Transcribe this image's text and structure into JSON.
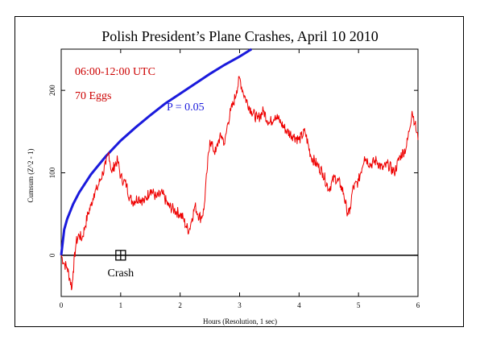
{
  "chart_data": {
    "type": "line",
    "title": "Polish President’s Plane Crashes, April 10 2010",
    "xlabel": "Hours (Resolution, 1 sec)",
    "ylabel": "Cumsum (Z^2 - 1)",
    "xlim": [
      0,
      6
    ],
    "ylim": [
      -50,
      250
    ],
    "xticks": [
      0,
      1,
      2,
      3,
      4,
      5,
      6
    ],
    "yticks": [
      0,
      100,
      200
    ],
    "annotations": {
      "time_range": "06:00-12:00 UTC",
      "eggs": "70 Eggs",
      "p_label": "P = 0.05",
      "event_label": "Crash",
      "event_x": 1.0,
      "event_y": 0
    },
    "colors": {
      "cumsum": "#ee0000",
      "p_envelope": "#1a1adc",
      "text_red": "#cc0000",
      "text_blue": "#1a1adc"
    },
    "p_envelope": {
      "name": "P = 0.05",
      "x": [
        0,
        0.05,
        0.1,
        0.2,
        0.3,
        0.5,
        0.75,
        1.0,
        1.25,
        1.5,
        1.75,
        2.0,
        2.25,
        2.5,
        2.75,
        3.0,
        3.2
      ],
      "y": [
        0,
        31,
        44,
        62,
        76,
        98,
        120,
        139,
        155,
        170,
        184,
        196,
        208,
        220,
        231,
        241,
        250
      ]
    },
    "series": [
      {
        "x": [
          0,
          0.05,
          0.1,
          0.15,
          0.18,
          0.2,
          0.25,
          0.3,
          0.35,
          0.4,
          0.45,
          0.5,
          0.55,
          0.6,
          0.65,
          0.7,
          0.75,
          0.8,
          0.85,
          0.9,
          0.95,
          1.0,
          1.05,
          1.1,
          1.15,
          1.2,
          1.3,
          1.4,
          1.5,
          1.6,
          1.7,
          1.8,
          1.9,
          2.0,
          2.05,
          2.1,
          2.15,
          2.2,
          2.25,
          2.3,
          2.35,
          2.4,
          2.45,
          2.5,
          2.55,
          2.6,
          2.65,
          2.7,
          2.75,
          2.8,
          2.85,
          2.9,
          2.95,
          3.0,
          3.05,
          3.1,
          3.2,
          3.3,
          3.4,
          3.5,
          3.6,
          3.7,
          3.8,
          3.9,
          4.0,
          4.1,
          4.2,
          4.3,
          4.4,
          4.5,
          4.6,
          4.7,
          4.75,
          4.8,
          4.85,
          4.9,
          5.0,
          5.1,
          5.2,
          5.3,
          5.4,
          5.5,
          5.6,
          5.7,
          5.8,
          5.85,
          5.9,
          5.95,
          6.0
        ],
        "y": [
          0,
          -10,
          -15,
          -30,
          -40,
          -20,
          15,
          25,
          20,
          35,
          50,
          60,
          75,
          80,
          90,
          100,
          110,
          125,
          100,
          110,
          115,
          95,
          90,
          85,
          70,
          65,
          70,
          65,
          80,
          70,
          75,
          60,
          55,
          50,
          45,
          35,
          30,
          45,
          60,
          50,
          45,
          55,
          100,
          140,
          130,
          125,
          140,
          145,
          135,
          160,
          175,
          185,
          200,
          215,
          200,
          190,
          175,
          165,
          175,
          160,
          170,
          160,
          150,
          145,
          140,
          150,
          120,
          110,
          100,
          80,
          95,
          85,
          75,
          55,
          50,
          80,
          90,
          120,
          110,
          115,
          105,
          110,
          100,
          120,
          130,
          150,
          175,
          160,
          140
        ]
      }
    ]
  }
}
